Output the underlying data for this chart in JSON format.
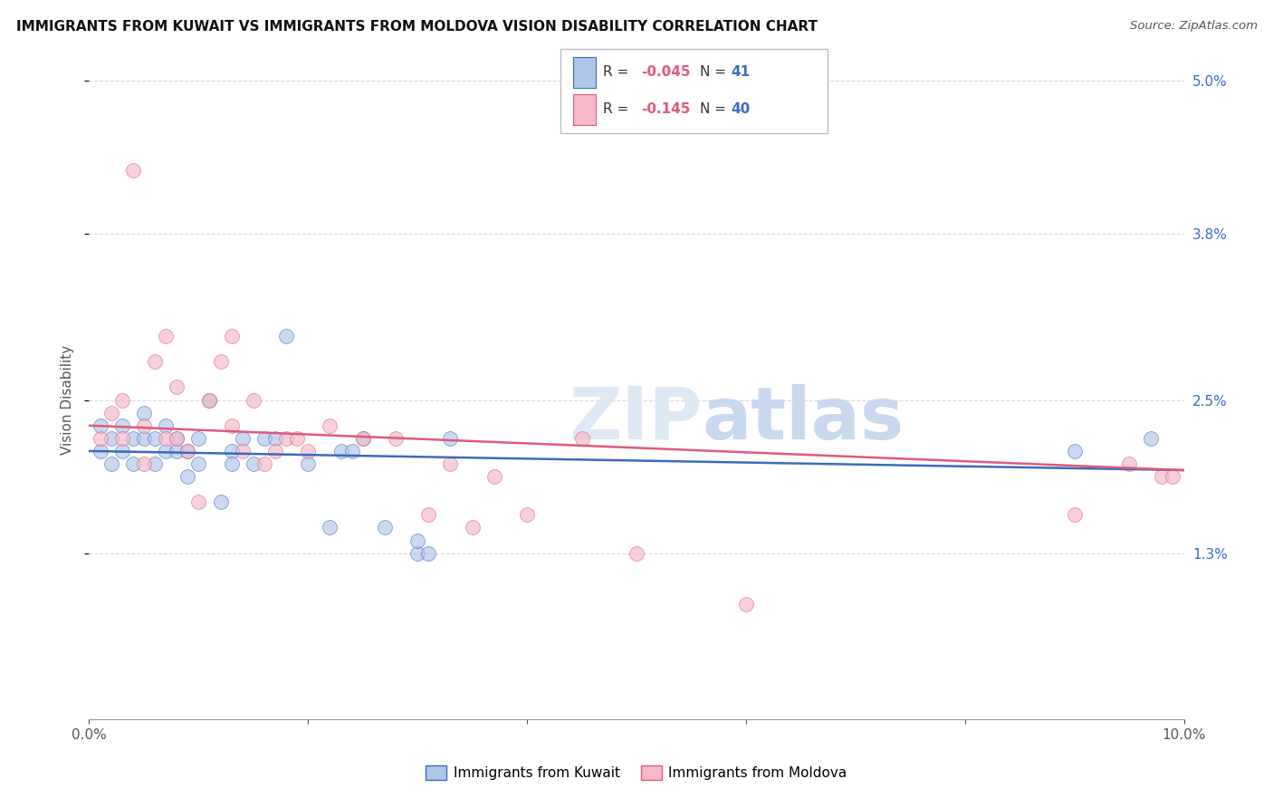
{
  "title": "IMMIGRANTS FROM KUWAIT VS IMMIGRANTS FROM MOLDOVA VISION DISABILITY CORRELATION CHART",
  "source": "Source: ZipAtlas.com",
  "ylabel": "Vision Disability",
  "xlim": [
    0.0,
    0.1
  ],
  "ylim": [
    0.0,
    0.05
  ],
  "xtick_positions": [
    0.0,
    0.02,
    0.04,
    0.06,
    0.08,
    0.1
  ],
  "xticklabels": [
    "0.0%",
    "",
    "",
    "",
    "",
    "10.0%"
  ],
  "ytick_positions": [
    0.013,
    0.025,
    0.038,
    0.05
  ],
  "ytick_labels": [
    "1.3%",
    "2.5%",
    "3.8%",
    "5.0%"
  ],
  "background_color": "#ffffff",
  "grid_color": "#d8d8d8",
  "kuwait_color": "#aec6e8",
  "moldova_color": "#f4b8c8",
  "kuwait_line_color": "#3a6bbf",
  "moldova_line_color": "#e05a7a",
  "kuwait_r": -0.045,
  "kuwait_n": 41,
  "moldova_r": -0.145,
  "moldova_n": 40,
  "kuwait_x": [
    0.001,
    0.001,
    0.002,
    0.002,
    0.003,
    0.003,
    0.004,
    0.004,
    0.005,
    0.005,
    0.006,
    0.006,
    0.007,
    0.007,
    0.008,
    0.008,
    0.009,
    0.009,
    0.01,
    0.01,
    0.011,
    0.012,
    0.013,
    0.013,
    0.014,
    0.015,
    0.016,
    0.017,
    0.018,
    0.02,
    0.022,
    0.023,
    0.024,
    0.025,
    0.027,
    0.03,
    0.03,
    0.031,
    0.033,
    0.09,
    0.097
  ],
  "kuwait_y": [
    0.021,
    0.023,
    0.02,
    0.022,
    0.021,
    0.023,
    0.02,
    0.022,
    0.022,
    0.024,
    0.02,
    0.022,
    0.021,
    0.023,
    0.022,
    0.021,
    0.019,
    0.021,
    0.022,
    0.02,
    0.025,
    0.017,
    0.021,
    0.02,
    0.022,
    0.02,
    0.022,
    0.022,
    0.03,
    0.02,
    0.015,
    0.021,
    0.021,
    0.022,
    0.015,
    0.013,
    0.014,
    0.013,
    0.022,
    0.021,
    0.022
  ],
  "moldova_x": [
    0.001,
    0.002,
    0.003,
    0.003,
    0.004,
    0.005,
    0.005,
    0.006,
    0.007,
    0.007,
    0.008,
    0.008,
    0.009,
    0.01,
    0.011,
    0.012,
    0.013,
    0.013,
    0.014,
    0.015,
    0.016,
    0.017,
    0.018,
    0.019,
    0.02,
    0.022,
    0.025,
    0.028,
    0.031,
    0.033,
    0.035,
    0.037,
    0.04,
    0.045,
    0.05,
    0.06,
    0.09,
    0.095,
    0.098,
    0.099
  ],
  "moldova_y": [
    0.022,
    0.024,
    0.022,
    0.025,
    0.043,
    0.02,
    0.023,
    0.028,
    0.022,
    0.03,
    0.026,
    0.022,
    0.021,
    0.017,
    0.025,
    0.028,
    0.03,
    0.023,
    0.021,
    0.025,
    0.02,
    0.021,
    0.022,
    0.022,
    0.021,
    0.023,
    0.022,
    0.022,
    0.016,
    0.02,
    0.015,
    0.019,
    0.016,
    0.022,
    0.013,
    0.009,
    0.016,
    0.02,
    0.019,
    0.019
  ],
  "marker_size": 130,
  "marker_alpha": 0.65,
  "line_width": 1.8
}
